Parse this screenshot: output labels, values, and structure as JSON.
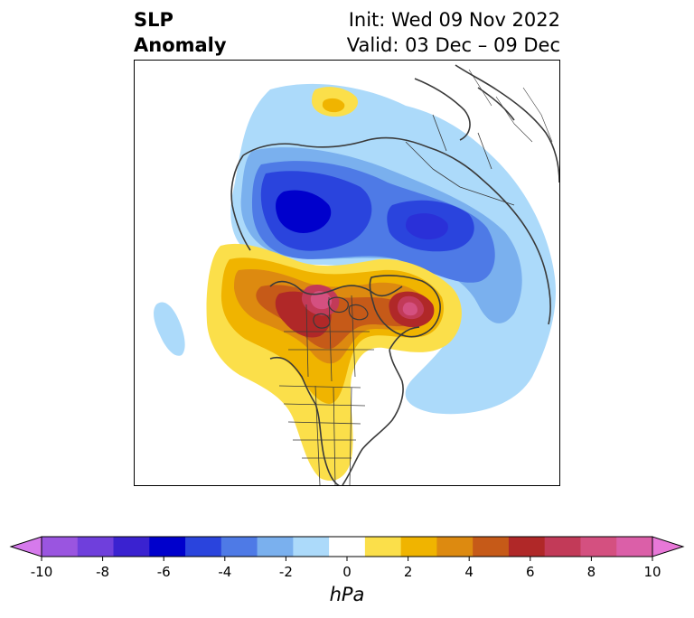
{
  "title": {
    "left_line1": "SLP",
    "left_line2": "Anomaly",
    "init": "Init: Wed 09 Nov 2022",
    "valid": "Valid: 03 Dec – 09 Dec"
  },
  "colorbar": {
    "unit": "hPa",
    "ticks": [
      "-10",
      "-8",
      "-6",
      "-4",
      "-2",
      "0",
      "2",
      "4",
      "6",
      "8",
      "10"
    ],
    "colors": [
      "#9a55e0",
      "#6f3fdc",
      "#3a22d0",
      "#0000cc",
      "#2a44dd",
      "#4e7ae6",
      "#7ab0ee",
      "#acdafa",
      "#ffffff",
      "#fbdf4a",
      "#f0b400",
      "#dd8a10",
      "#c65a18",
      "#b02828",
      "#c23a58",
      "#d45080",
      "#db5fa8"
    ],
    "extend_min_color": "#d67aec",
    "extend_max_color": "#e878d8"
  },
  "map": {
    "projection": "polar-stereographic",
    "region": "Northern Hemisphere",
    "colors": {
      "land_line": "#3a3a3a",
      "lightblue": "#acdafa",
      "midblue": "#7ab0ee",
      "blue": "#4e7ae6",
      "deepblue": "#2a44dd",
      "darkblue": "#0000cc",
      "yellow": "#fbdf4a",
      "gold": "#f0b400",
      "orange": "#dd8a10",
      "darkorange": "#c65a18",
      "red": "#b02828",
      "crimson": "#c23a58",
      "pink": "#d45080"
    }
  }
}
